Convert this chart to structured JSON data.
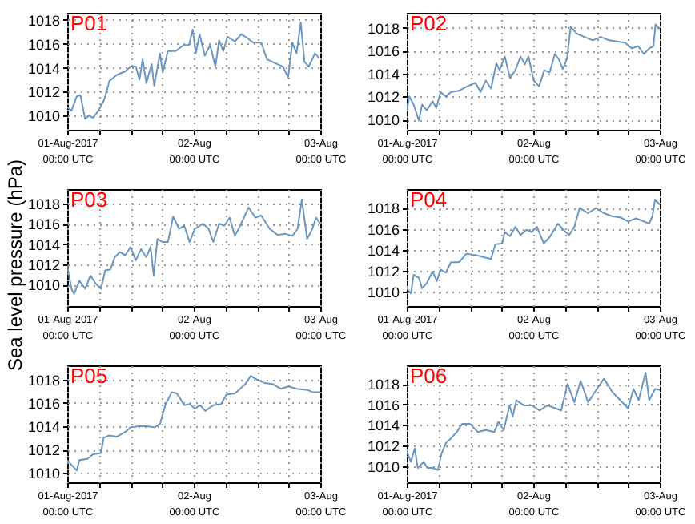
{
  "chart_data": [
    {
      "type": "line",
      "title": "P01",
      "xlim": [
        "2017-08-01T00:00",
        "2017-08-03T00:00"
      ],
      "ylim": [
        1008.8,
        1018.6
      ],
      "yticks": [
        1010,
        1012,
        1014,
        1016,
        1018
      ],
      "grid": true,
      "xticks": [
        {
          "value": "2017-08-01T00:00",
          "label": "01-Aug-2017\n00:00 UTC"
        },
        {
          "value": "2017-08-01T06:00",
          "label": null
        },
        {
          "value": "2017-08-01T12:00",
          "label": null
        },
        {
          "value": "2017-08-01T18:00",
          "label": null
        },
        {
          "value": "2017-08-02T00:00",
          "label": "02-Aug\n00:00 UTC"
        },
        {
          "value": "2017-08-02T06:00",
          "label": null
        },
        {
          "value": "2017-08-02T12:00",
          "label": null
        },
        {
          "value": "2017-08-02T18:00",
          "label": null
        },
        {
          "value": "2017-08-03T00:00",
          "label": "03-Aug\n00:00 UTC"
        }
      ],
      "series": [
        {
          "color": "#6b97bf",
          "x": [
            "2017-08-01T00:00",
            "2017-08-01T00:48",
            "2017-08-01T01:48",
            "2017-08-01T02:30",
            "2017-08-01T03:24",
            "2017-08-01T04:06",
            "2017-08-01T04:54",
            "2017-08-01T05:54",
            "2017-08-01T07:00",
            "2017-08-01T08:00",
            "2017-08-01T09:24",
            "2017-08-01T11:00",
            "2017-08-01T12:00",
            "2017-08-01T13:00",
            "2017-08-01T13:42",
            "2017-08-01T14:18",
            "2017-08-01T15:00",
            "2017-08-01T16:00",
            "2017-08-01T16:30",
            "2017-08-01T17:36",
            "2017-08-01T18:06",
            "2017-08-01T19:06",
            "2017-08-01T20:36",
            "2017-08-01T22:06",
            "2017-08-01T23:06",
            "2017-08-01T23:48",
            "2017-08-02T00:24",
            "2017-08-02T01:06",
            "2017-08-02T02:06",
            "2017-08-02T03:06",
            "2017-08-02T04:06",
            "2017-08-02T04:48",
            "2017-08-02T05:36",
            "2017-08-02T06:24",
            "2017-08-02T07:48",
            "2017-08-02T09:00",
            "2017-08-02T09:48",
            "2017-08-02T11:18",
            "2017-08-02T12:48",
            "2017-08-02T13:54",
            "2017-08-02T15:24",
            "2017-08-02T16:54",
            "2017-08-02T17:54",
            "2017-08-02T18:42",
            "2017-08-02T19:30",
            "2017-08-02T20:18",
            "2017-08-02T21:00",
            "2017-08-02T21:48",
            "2017-08-02T23:00",
            "2017-08-02T23:48"
          ],
          "values": [
            1010.7,
            1010.4,
            1011.6,
            1011.7,
            1009.7,
            1010,
            1009.8,
            1010.4,
            1011.3,
            1012.9,
            1013.4,
            1013.7,
            1014.1,
            1014.1,
            1013,
            1014.7,
            1012.7,
            1014.3,
            1012.5,
            1015.2,
            1013.6,
            1015.4,
            1015.4,
            1015.9,
            1015.9,
            1017.2,
            1015.2,
            1016.8,
            1015,
            1015.9,
            1014.1,
            1016.3,
            1015.4,
            1016.6,
            1016.2,
            1016.8,
            1016.6,
            1016.1,
            1016.1,
            1014.7,
            1014.4,
            1014.1,
            1013.2,
            1016.1,
            1015.2,
            1017.8,
            1014.5,
            1014.1,
            1015.2,
            1014.8
          ]
        }
      ]
    },
    {
      "type": "line",
      "title": "P02",
      "xlim": [
        "2017-08-01T00:00",
        "2017-08-03T00:00"
      ],
      "ylim": [
        1009.1,
        1019.3
      ],
      "yticks": [
        1010,
        1012,
        1014,
        1016,
        1018
      ],
      "grid": true,
      "xticks": [
        {
          "value": "2017-08-01T00:00",
          "label": "01-Aug-2017\n00:00 UTC"
        },
        {
          "value": "2017-08-01T06:00",
          "label": null
        },
        {
          "value": "2017-08-01T12:00",
          "label": null
        },
        {
          "value": "2017-08-01T18:00",
          "label": null
        },
        {
          "value": "2017-08-02T00:00",
          "label": "02-Aug\n00:00 UTC"
        },
        {
          "value": "2017-08-02T06:00",
          "label": null
        },
        {
          "value": "2017-08-02T12:00",
          "label": null
        },
        {
          "value": "2017-08-02T18:00",
          "label": null
        },
        {
          "value": "2017-08-03T00:00",
          "label": "03-Aug\n00:00 UTC"
        }
      ],
      "series": [
        {
          "color": "#6b97bf",
          "x": [
            "2017-08-01T00:00",
            "2017-08-01T00:30",
            "2017-08-01T01:18",
            "2017-08-01T02:18",
            "2017-08-01T02:54",
            "2017-08-01T03:48",
            "2017-08-01T04:54",
            "2017-08-01T05:36",
            "2017-08-01T06:24",
            "2017-08-01T07:24",
            "2017-08-01T08:24",
            "2017-08-01T09:54",
            "2017-08-01T11:30",
            "2017-08-01T13:00",
            "2017-08-01T14:00",
            "2017-08-01T15:00",
            "2017-08-01T16:00",
            "2017-08-01T17:00",
            "2017-08-01T17:36",
            "2017-08-01T18:36",
            "2017-08-01T19:36",
            "2017-08-01T20:36",
            "2017-08-01T21:36",
            "2017-08-01T22:24",
            "2017-08-01T23:06",
            "2017-08-02T00:06",
            "2017-08-02T01:06",
            "2017-08-02T02:06",
            "2017-08-02T03:06",
            "2017-08-02T04:06",
            "2017-08-02T04:48",
            "2017-08-02T05:36",
            "2017-08-02T06:24",
            "2017-08-02T07:06",
            "2017-08-02T08:12",
            "2017-08-02T09:42",
            "2017-08-02T11:18",
            "2017-08-02T12:48",
            "2017-08-02T14:24",
            "2017-08-02T15:54",
            "2017-08-02T17:24",
            "2017-08-02T18:42",
            "2017-08-02T19:54",
            "2017-08-02T21:00",
            "2017-08-02T22:00",
            "2017-08-02T22:48",
            "2017-08-02T23:12",
            "2017-08-03T00:00"
          ],
          "values": [
            1010.8,
            1012,
            1011.3,
            1009.9,
            1011.3,
            1010.8,
            1011.6,
            1011,
            1012.4,
            1012,
            1012.4,
            1012.5,
            1012.9,
            1013.2,
            1012.4,
            1013.4,
            1012.7,
            1014.9,
            1014.3,
            1015.5,
            1013.6,
            1014.3,
            1015.5,
            1014.8,
            1015.5,
            1013.4,
            1012.9,
            1014.3,
            1014.1,
            1015.7,
            1015.3,
            1014.4,
            1015.3,
            1018.1,
            1017.5,
            1017.2,
            1016.9,
            1017.2,
            1016.9,
            1016.8,
            1016.7,
            1016.2,
            1016.4,
            1015.7,
            1016.2,
            1016.4,
            1018.3,
            1017.9
          ]
        }
      ]
    },
    {
      "type": "line",
      "title": "P03",
      "ylabel": "Sea level pressure (hPa)",
      "xlim": [
        "2017-08-01T00:00",
        "2017-08-03T00:00"
      ],
      "ylim": [
        1007.9,
        1019.4
      ],
      "yticks": [
        1010,
        1012,
        1014,
        1016,
        1018
      ],
      "grid": true,
      "xticks": [
        {
          "value": "2017-08-01T00:00",
          "label": "01-Aug-2017\n00:00 UTC"
        },
        {
          "value": "2017-08-01T06:00",
          "label": null
        },
        {
          "value": "2017-08-01T12:00",
          "label": null
        },
        {
          "value": "2017-08-01T18:00",
          "label": null
        },
        {
          "value": "2017-08-02T00:00",
          "label": "02-Aug\n00:00 UTC"
        },
        {
          "value": "2017-08-02T06:00",
          "label": null
        },
        {
          "value": "2017-08-02T12:00",
          "label": null
        },
        {
          "value": "2017-08-02T18:00",
          "label": null
        },
        {
          "value": "2017-08-03T00:00",
          "label": "03-Aug\n00:00 UTC"
        }
      ],
      "series": [
        {
          "color": "#6b97bf",
          "x": [
            "2017-08-01T00:00",
            "2017-08-01T00:48",
            "2017-08-01T01:18",
            "2017-08-01T02:18",
            "2017-08-01T03:24",
            "2017-08-01T04:24",
            "2017-08-01T05:24",
            "2017-08-01T06:24",
            "2017-08-01T07:12",
            "2017-08-01T08:12",
            "2017-08-01T09:00",
            "2017-08-01T10:00",
            "2017-08-01T11:00",
            "2017-08-01T12:00",
            "2017-08-01T13:00",
            "2017-08-01T14:00",
            "2017-08-01T15:00",
            "2017-08-01T15:48",
            "2017-08-01T16:24",
            "2017-08-01T17:06",
            "2017-08-01T18:06",
            "2017-08-01T19:06",
            "2017-08-01T20:06",
            "2017-08-01T21:12",
            "2017-08-01T22:12",
            "2017-08-01T23:12",
            "2017-08-02T00:12",
            "2017-08-02T01:48",
            "2017-08-02T02:48",
            "2017-08-02T03:42",
            "2017-08-02T04:48",
            "2017-08-02T05:48",
            "2017-08-02T06:48",
            "2017-08-02T07:48",
            "2017-08-02T08:48",
            "2017-08-02T10:24",
            "2017-08-02T11:42",
            "2017-08-02T12:48",
            "2017-08-02T14:24",
            "2017-08-02T15:54",
            "2017-08-02T17:24",
            "2017-08-02T18:42",
            "2017-08-02T19:42",
            "2017-08-02T20:30",
            "2017-08-02T21:30",
            "2017-08-02T22:30",
            "2017-08-02T23:12",
            "2017-08-03T00:00"
          ],
          "values": [
            1011.9,
            1009.6,
            1009.1,
            1010.4,
            1009.6,
            1010.9,
            1010.1,
            1009.6,
            1011.4,
            1011.5,
            1012.7,
            1013.2,
            1012.9,
            1013.7,
            1012.4,
            1013.5,
            1012.7,
            1013.7,
            1010.9,
            1014.5,
            1014.2,
            1014.2,
            1016.7,
            1015.5,
            1015.8,
            1014.2,
            1015.5,
            1016,
            1015.5,
            1014.2,
            1016,
            1015.8,
            1016.6,
            1014.8,
            1015.8,
            1017.6,
            1016.6,
            1016.8,
            1015.5,
            1014.9,
            1015,
            1014.8,
            1015.5,
            1018.4,
            1014.5,
            1015.5,
            1016.6,
            1016
          ]
        }
      ]
    },
    {
      "type": "line",
      "title": "P04",
      "xlim": [
        "2017-08-01T00:00",
        "2017-08-03T00:00"
      ],
      "ylim": [
        1008.6,
        1019.8
      ],
      "yticks": [
        1010,
        1012,
        1014,
        1016,
        1018
      ],
      "grid": true,
      "xticks": [
        {
          "value": "2017-08-01T00:00",
          "label": "01-Aug-2017\n00:00 UTC"
        },
        {
          "value": "2017-08-01T06:00",
          "label": null
        },
        {
          "value": "2017-08-01T12:00",
          "label": null
        },
        {
          "value": "2017-08-01T18:00",
          "label": null
        },
        {
          "value": "2017-08-02T00:00",
          "label": "02-Aug\n00:00 UTC"
        },
        {
          "value": "2017-08-02T06:00",
          "label": null
        },
        {
          "value": "2017-08-02T12:00",
          "label": null
        },
        {
          "value": "2017-08-02T18:00",
          "label": null
        },
        {
          "value": "2017-08-03T00:00",
          "label": "03-Aug\n00:00 UTC"
        }
      ],
      "series": [
        {
          "color": "#6b97bf",
          "x": [
            "2017-08-01T00:00",
            "2017-08-01T00:48",
            "2017-08-01T01:18",
            "2017-08-01T02:18",
            "2017-08-01T02:54",
            "2017-08-01T03:48",
            "2017-08-01T04:54",
            "2017-08-01T05:42",
            "2017-08-01T06:24",
            "2017-08-01T07:24",
            "2017-08-01T08:24",
            "2017-08-01T09:54",
            "2017-08-01T11:18",
            "2017-08-01T13:00",
            "2017-08-01T14:30",
            "2017-08-01T16:00",
            "2017-08-01T16:48",
            "2017-08-01T18:06",
            "2017-08-01T18:36",
            "2017-08-01T19:36",
            "2017-08-01T20:36",
            "2017-08-01T21:36",
            "2017-08-01T22:42",
            "2017-08-01T23:42",
            "2017-08-02T00:42",
            "2017-08-02T02:00",
            "2017-08-02T03:06",
            "2017-08-02T04:42",
            "2017-08-02T05:42",
            "2017-08-02T06:48",
            "2017-08-02T07:48",
            "2017-08-02T08:48",
            "2017-08-02T10:24",
            "2017-08-02T11:54",
            "2017-08-02T13:24",
            "2017-08-02T15:00",
            "2017-08-02T16:30",
            "2017-08-02T18:00",
            "2017-08-02T19:30",
            "2017-08-02T21:00",
            "2017-08-02T22:00",
            "2017-08-02T22:36",
            "2017-08-02T23:06",
            "2017-08-03T00:00"
          ],
          "values": [
            1010.3,
            1009.8,
            1011.6,
            1011.3,
            1010.3,
            1010.8,
            1011.9,
            1011,
            1012.1,
            1011.8,
            1012.8,
            1012.8,
            1013.6,
            1013.5,
            1013.3,
            1013.1,
            1014.5,
            1014.6,
            1015.7,
            1015.3,
            1016.2,
            1015.4,
            1015.9,
            1015.7,
            1016.2,
            1014.6,
            1015.2,
            1016.5,
            1015.9,
            1015.4,
            1016.2,
            1018,
            1017.5,
            1018,
            1017.5,
            1017.2,
            1017.1,
            1016.7,
            1017,
            1016.7,
            1016.5,
            1017.2,
            1018.8,
            1018.3
          ]
        }
      ]
    },
    {
      "type": "line",
      "title": "P05",
      "xlim": [
        "2017-08-01T00:00",
        "2017-08-03T00:00"
      ],
      "ylim": [
        1009.2,
        1019.2
      ],
      "yticks": [
        1010,
        1012,
        1014,
        1016,
        1018
      ],
      "grid": true,
      "xticks": [
        {
          "value": "2017-08-01T00:00",
          "label": "01-Aug-2017\n00:00 UTC"
        },
        {
          "value": "2017-08-01T06:00",
          "label": null
        },
        {
          "value": "2017-08-01T12:00",
          "label": null
        },
        {
          "value": "2017-08-01T18:00",
          "label": null
        },
        {
          "value": "2017-08-02T00:00",
          "label": "02-Aug\n00:00 UTC"
        },
        {
          "value": "2017-08-02T06:00",
          "label": null
        },
        {
          "value": "2017-08-02T12:00",
          "label": null
        },
        {
          "value": "2017-08-02T18:00",
          "label": null
        },
        {
          "value": "2017-08-03T00:00",
          "label": "03-Aug\n00:00 UTC"
        }
      ],
      "series": [
        {
          "color": "#6b97bf",
          "x": [
            "2017-08-01T00:00",
            "2017-08-01T00:48",
            "2017-08-01T01:48",
            "2017-08-01T02:18",
            "2017-08-01T03:48",
            "2017-08-01T04:54",
            "2017-08-01T06:24",
            "2017-08-01T06:54",
            "2017-08-01T07:54",
            "2017-08-01T09:24",
            "2017-08-01T11:00",
            "2017-08-01T12:00",
            "2017-08-01T13:30",
            "2017-08-01T15:00",
            "2017-08-01T16:36",
            "2017-08-01T17:36",
            "2017-08-01T18:36",
            "2017-08-01T19:48",
            "2017-08-01T20:48",
            "2017-08-01T22:12",
            "2017-08-01T23:12",
            "2017-08-02T00:12",
            "2017-08-02T01:12",
            "2017-08-02T02:12",
            "2017-08-02T03:42",
            "2017-08-02T05:12",
            "2017-08-02T06:12",
            "2017-08-02T07:48",
            "2017-08-02T08:48",
            "2017-08-02T09:48",
            "2017-08-02T10:48",
            "2017-08-02T11:54",
            "2017-08-02T13:24",
            "2017-08-02T15:00",
            "2017-08-02T16:30",
            "2017-08-02T18:00",
            "2017-08-02T19:30",
            "2017-08-02T21:36",
            "2017-08-02T22:36",
            "2017-08-03T00:00"
          ],
          "values": [
            1011.1,
            1010.7,
            1010.2,
            1011.1,
            1011.2,
            1011.6,
            1011.7,
            1013,
            1013.2,
            1013.1,
            1013.5,
            1013.9,
            1014,
            1014,
            1013.9,
            1014.2,
            1015.8,
            1016.9,
            1016.8,
            1015.8,
            1015.9,
            1015.5,
            1015.8,
            1015.3,
            1015.8,
            1015.9,
            1016.7,
            1016.8,
            1017.2,
            1017.6,
            1018.3,
            1018,
            1017.7,
            1017.6,
            1017.2,
            1017.4,
            1017.2,
            1017.1,
            1016.9,
            1016.9
          ]
        }
      ]
    },
    {
      "type": "line",
      "title": "P06",
      "xlim": [
        "2017-08-01T00:00",
        "2017-08-03T00:00"
      ],
      "ylim": [
        1008.4,
        1019.8
      ],
      "yticks": [
        1010,
        1012,
        1014,
        1016,
        1018
      ],
      "grid": true,
      "xticks": [
        {
          "value": "2017-08-01T00:00",
          "label": "01-Aug-2017\n00:00 UTC"
        },
        {
          "value": "2017-08-01T06:00",
          "label": null
        },
        {
          "value": "2017-08-01T12:00",
          "label": null
        },
        {
          "value": "2017-08-01T18:00",
          "label": null
        },
        {
          "value": "2017-08-02T00:00",
          "label": "02-Aug\n00:00 UTC"
        },
        {
          "value": "2017-08-02T06:00",
          "label": null
        },
        {
          "value": "2017-08-02T12:00",
          "label": null
        },
        {
          "value": "2017-08-02T18:00",
          "label": null
        },
        {
          "value": "2017-08-03T00:00",
          "label": "03-Aug\n00:00 UTC"
        }
      ],
      "series": [
        {
          "color": "#6b97bf",
          "x": [
            "2017-08-01T00:00",
            "2017-08-01T00:48",
            "2017-08-01T01:30",
            "2017-08-01T02:06",
            "2017-08-01T03:12",
            "2017-08-01T03:54",
            "2017-08-01T04:54",
            "2017-08-01T05:54",
            "2017-08-01T06:36",
            "2017-08-01T07:24",
            "2017-08-01T08:24",
            "2017-08-01T09:30",
            "2017-08-01T10:30",
            "2017-08-01T12:00",
            "2017-08-01T13:30",
            "2017-08-01T15:00",
            "2017-08-01T16:36",
            "2017-08-01T17:24",
            "2017-08-01T18:24",
            "2017-08-01T19:30",
            "2017-08-01T20:06",
            "2017-08-01T20:48",
            "2017-08-01T22:12",
            "2017-08-01T23:42",
            "2017-08-02T01:12",
            "2017-08-02T02:42",
            "2017-08-02T04:18",
            "2017-08-02T05:18",
            "2017-08-02T06:30",
            "2017-08-02T07:48",
            "2017-08-02T09:00",
            "2017-08-02T10:24",
            "2017-08-02T11:42",
            "2017-08-02T13:24",
            "2017-08-02T15:00",
            "2017-08-02T16:30",
            "2017-08-02T18:00",
            "2017-08-02T19:00",
            "2017-08-02T20:00",
            "2017-08-02T21:18",
            "2017-08-02T22:00",
            "2017-08-02T23:06",
            "2017-08-03T00:00"
          ],
          "values": [
            1011.4,
            1010.4,
            1011.7,
            1009.8,
            1010.4,
            1009.8,
            1009.8,
            1009.6,
            1011.2,
            1012.2,
            1012.7,
            1013.3,
            1014.1,
            1014.1,
            1013.3,
            1013.5,
            1013.3,
            1014.3,
            1013.5,
            1015.9,
            1014.8,
            1016.4,
            1015.9,
            1015.9,
            1015.4,
            1015.9,
            1015.6,
            1015.4,
            1018,
            1016.2,
            1018.3,
            1016.2,
            1017.2,
            1018.5,
            1017.2,
            1016.4,
            1015.6,
            1017.5,
            1016.4,
            1019.1,
            1016.4,
            1017.5,
            1017.4
          ]
        }
      ]
    }
  ]
}
